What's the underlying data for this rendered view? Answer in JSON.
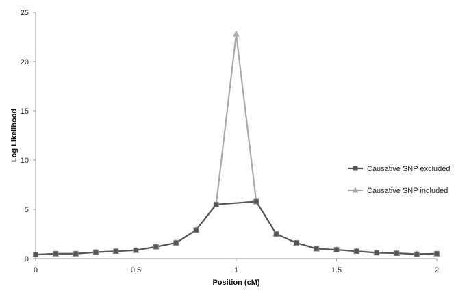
{
  "chart_data": {
    "type": "line",
    "title": "",
    "xlabel": "Position (cM)",
    "ylabel": "Log Likelihood",
    "xlim": [
      0,
      2
    ],
    "ylim": [
      0,
      25
    ],
    "x_ticks": [
      {
        "value": 0,
        "label": "0"
      },
      {
        "value": 0.5,
        "label": "0.5"
      },
      {
        "value": 1,
        "label": "1"
      },
      {
        "value": 1.5,
        "label": "1.5"
      },
      {
        "value": 2,
        "label": "2"
      }
    ],
    "y_ticks": [
      {
        "value": 0,
        "label": "0"
      },
      {
        "value": 5,
        "label": "5"
      },
      {
        "value": 10,
        "label": "10"
      },
      {
        "value": 15,
        "label": "15"
      },
      {
        "value": 20,
        "label": "20"
      },
      {
        "value": 25,
        "label": "25"
      }
    ],
    "grid": false,
    "legend_position": "right",
    "series": [
      {
        "name": "Causative SNP excluded",
        "color": "#555555",
        "marker": "square",
        "x": [
          0,
          0.1,
          0.2,
          0.3,
          0.4,
          0.5,
          0.6,
          0.7,
          0.8,
          0.9,
          1.1,
          1.2,
          1.3,
          1.4,
          1.5,
          1.6,
          1.7,
          1.8,
          1.9,
          2.0
        ],
        "values": [
          0.4,
          0.5,
          0.5,
          0.65,
          0.75,
          0.85,
          1.2,
          1.6,
          2.9,
          5.5,
          5.8,
          2.5,
          1.6,
          1.0,
          0.9,
          0.75,
          0.6,
          0.55,
          0.45,
          0.5
        ]
      },
      {
        "name": "Causative SNP included",
        "color": "#aaaaaa",
        "marker": "triangle",
        "x": [
          0,
          0.1,
          0.2,
          0.3,
          0.4,
          0.5,
          0.6,
          0.7,
          0.8,
          0.9,
          1.0,
          1.1,
          1.2,
          1.3,
          1.4,
          1.5,
          1.6,
          1.7,
          1.8,
          1.9,
          2.0
        ],
        "values": [
          0.4,
          0.5,
          0.5,
          0.65,
          0.75,
          0.85,
          1.2,
          1.6,
          2.9,
          5.5,
          22.8,
          5.8,
          2.5,
          1.6,
          1.0,
          0.9,
          0.75,
          0.6,
          0.55,
          0.45,
          0.5
        ]
      }
    ]
  }
}
